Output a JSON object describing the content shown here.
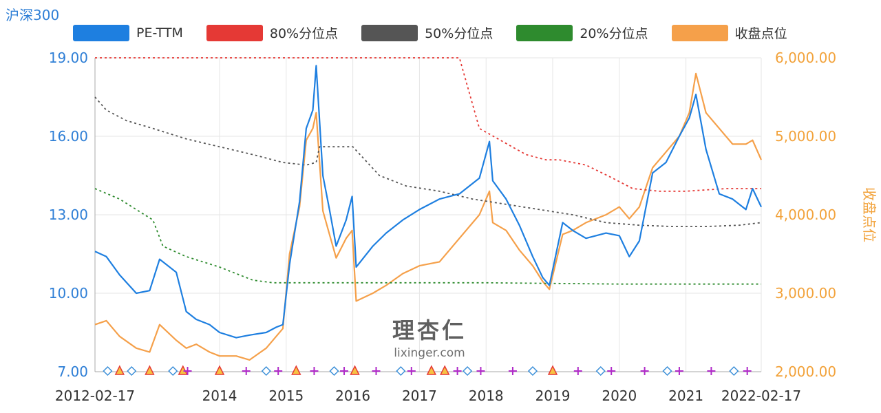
{
  "chart_data": {
    "type": "line",
    "title": "沪深300",
    "y_right_label": "收盘点位",
    "left_axis": {
      "ticks": [
        "19.00",
        "16.00",
        "13.00",
        "10.00",
        "7.00"
      ],
      "range": [
        7,
        19
      ]
    },
    "right_axis": {
      "ticks": [
        "6,000.00",
        "5,000.00",
        "4,000.00",
        "3,000.00",
        "2,000.00"
      ],
      "range": [
        2000,
        6000
      ]
    },
    "x_axis": {
      "range": [
        "2012-02-17",
        "2022-02-17"
      ],
      "ticks": [
        "2012-02-17",
        "2014",
        "2015",
        "2016",
        "2017",
        "2018",
        "2019",
        "2020",
        "2021",
        "2022-02-17"
      ]
    },
    "legend": [
      "PE-TTM",
      "80%分位点",
      "50%分位点",
      "20%分位点",
      "收盘点位"
    ],
    "colors": {
      "pe": "#1e7fe0",
      "p80": "#e53935",
      "p50": "#555555",
      "p20": "#2e8b2e",
      "close": "#f5a04a"
    },
    "series": [
      {
        "name": "PE-TTM",
        "axis": "left",
        "x": [
          2012.13,
          2012.3,
          2012.5,
          2012.75,
          2012.95,
          2013.1,
          2013.35,
          2013.5,
          2013.65,
          2013.85,
          2014.0,
          2014.25,
          2014.45,
          2014.7,
          2014.85,
          2014.95,
          2015.05,
          2015.2,
          2015.3,
          2015.4,
          2015.45,
          2015.55,
          2015.65,
          2015.75,
          2015.9,
          2015.99,
          2016.05,
          2016.3,
          2016.5,
          2016.75,
          2017.0,
          2017.3,
          2017.6,
          2017.9,
          2018.05,
          2018.1,
          2018.3,
          2018.5,
          2018.7,
          2018.85,
          2018.95,
          2019.15,
          2019.3,
          2019.5,
          2019.8,
          2020.0,
          2020.15,
          2020.3,
          2020.5,
          2020.7,
          2020.9,
          2021.05,
          2021.15,
          2021.3,
          2021.5,
          2021.7,
          2021.9,
          2022.0,
          2022.13
        ],
        "values": [
          11.6,
          11.4,
          10.7,
          10.0,
          10.1,
          11.3,
          10.8,
          9.3,
          9.0,
          8.8,
          8.5,
          8.3,
          8.4,
          8.5,
          8.7,
          8.8,
          11.1,
          13.5,
          16.3,
          17.0,
          18.7,
          14.5,
          13.2,
          11.8,
          12.8,
          13.7,
          11.0,
          11.8,
          12.3,
          12.8,
          13.2,
          13.6,
          13.8,
          14.4,
          15.8,
          14.3,
          13.6,
          12.6,
          11.4,
          10.6,
          10.3,
          12.7,
          12.4,
          12.1,
          12.3,
          12.2,
          11.4,
          12.0,
          14.6,
          15.0,
          16.0,
          16.7,
          17.6,
          15.5,
          13.8,
          13.6,
          13.2,
          14.0,
          13.3
        ]
      },
      {
        "name": "收盘点位",
        "axis": "right",
        "x": [
          2012.13,
          2012.3,
          2012.5,
          2012.75,
          2012.95,
          2013.1,
          2013.35,
          2013.5,
          2013.65,
          2013.85,
          2014.0,
          2014.25,
          2014.45,
          2014.7,
          2014.85,
          2014.95,
          2015.05,
          2015.2,
          2015.3,
          2015.4,
          2015.45,
          2015.55,
          2015.65,
          2015.75,
          2015.9,
          2015.99,
          2016.05,
          2016.3,
          2016.5,
          2016.75,
          2017.0,
          2017.3,
          2017.6,
          2017.9,
          2018.05,
          2018.1,
          2018.3,
          2018.5,
          2018.7,
          2018.85,
          2018.95,
          2019.15,
          2019.3,
          2019.5,
          2019.8,
          2020.0,
          2020.15,
          2020.3,
          2020.5,
          2020.7,
          2020.9,
          2021.05,
          2021.15,
          2021.3,
          2021.5,
          2021.7,
          2021.9,
          2022.0,
          2022.13
        ],
        "values": [
          2600,
          2650,
          2450,
          2300,
          2250,
          2600,
          2400,
          2300,
          2350,
          2250,
          2200,
          2200,
          2150,
          2300,
          2450,
          2550,
          3500,
          4100,
          4950,
          5100,
          5300,
          4050,
          3750,
          3450,
          3700,
          3800,
          2900,
          3000,
          3100,
          3250,
          3350,
          3400,
          3700,
          4000,
          4300,
          3900,
          3800,
          3550,
          3350,
          3150,
          3050,
          3750,
          3800,
          3900,
          4000,
          4100,
          3950,
          4100,
          4600,
          4800,
          5000,
          5300,
          5800,
          5300,
          5100,
          4900,
          4900,
          4950,
          4700
        ]
      },
      {
        "name": "80%分位点",
        "axis": "left",
        "x": [
          2012.13,
          2015.35,
          2015.5,
          2017.6,
          2017.9,
          2018.6,
          2018.9,
          2019.1,
          2019.5,
          2019.9,
          2020.2,
          2020.6,
          2021.0,
          2021.6,
          2022.13
        ],
        "values": [
          19.0,
          19.0,
          19.0,
          19.0,
          16.3,
          15.3,
          15.1,
          15.1,
          14.9,
          14.4,
          14.0,
          13.9,
          13.9,
          14.0,
          14.0
        ]
      },
      {
        "name": "50%分位点",
        "axis": "left",
        "x": [
          2012.13,
          2012.3,
          2012.6,
          2013.0,
          2013.5,
          2014.0,
          2014.5,
          2014.95,
          2015.3,
          2015.45,
          2015.5,
          2016.0,
          2016.4,
          2016.8,
          2017.3,
          2017.8,
          2018.3,
          2018.8,
          2019.3,
          2019.8,
          2020.3,
          2020.8,
          2021.3,
          2021.8,
          2022.13
        ],
        "values": [
          17.5,
          17.0,
          16.6,
          16.3,
          15.9,
          15.6,
          15.3,
          15.0,
          14.9,
          15.0,
          15.6,
          15.6,
          14.5,
          14.1,
          13.9,
          13.6,
          13.4,
          13.2,
          13.0,
          12.7,
          12.6,
          12.55,
          12.55,
          12.6,
          12.7
        ]
      },
      {
        "name": "20%分位点",
        "axis": "left",
        "x": [
          2012.13,
          2012.5,
          2013.0,
          2013.15,
          2013.5,
          2014.0,
          2014.5,
          2014.8,
          2015.0,
          2016.0,
          2018.0,
          2020.0,
          2022.13
        ],
        "values": [
          14.0,
          13.6,
          12.8,
          11.8,
          11.4,
          11.0,
          10.5,
          10.4,
          10.4,
          10.4,
          10.4,
          10.35,
          10.35
        ]
      }
    ],
    "markers": {
      "diamonds": [
        2012.32,
        2012.68,
        2013.3,
        2014.7,
        2015.72,
        2016.72,
        2017.72,
        2018.7,
        2019.72,
        2020.72,
        2021.72
      ],
      "triangles": [
        2012.5,
        2012.95,
        2013.45,
        2014.0,
        2015.15,
        2016.03,
        2017.18,
        2017.38,
        2019.0
      ],
      "pluses": [
        2013.52,
        2014.4,
        2014.88,
        2015.42,
        2015.87,
        2016.35,
        2016.88,
        2017.57,
        2017.92,
        2018.4,
        2019.38,
        2019.88,
        2020.38,
        2020.9,
        2021.38,
        2021.92
      ]
    },
    "grid": true
  },
  "watermark": {
    "top": "理杏仁",
    "bottom": "lixinger.com"
  }
}
